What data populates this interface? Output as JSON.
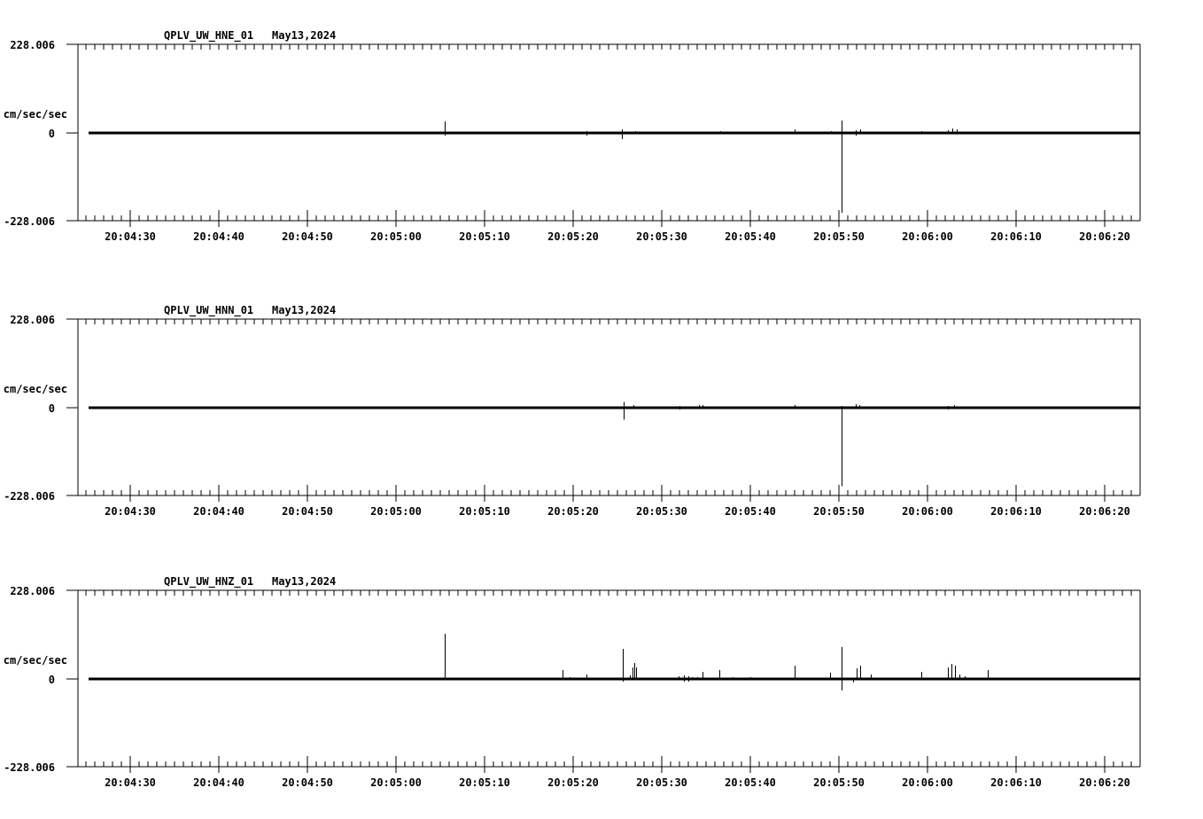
{
  "page": {
    "background": "#ffffff",
    "foreground": "#000000"
  },
  "chart_data": {
    "type": "line",
    "subtype": "seismic-acceleration-waveforms",
    "date": "May13,2024",
    "units": "cm/sec/sec",
    "ylim": [
      -228.006,
      228.006
    ],
    "yticks": [
      "228.006",
      "0",
      "-228.006"
    ],
    "x_tick_labels": [
      "20:04:30",
      "20:04:40",
      "20:04:50",
      "20:05:00",
      "20:05:10",
      "20:05:20",
      "20:05:30",
      "20:05:40",
      "20:05:50",
      "20:06:00",
      "20:06:10",
      "20:06:20"
    ],
    "x_major_interval_sec": 10,
    "x_minor_interval_sec": 1,
    "x_range_start": "20:04:25",
    "x_range_end": "20:06:24",
    "grid": false,
    "legend": false,
    "spike_format": "[seconds_after_20:04:30, peak_up_cm_s2, peak_down_cm_s2]",
    "panels": [
      {
        "id": "HNE",
        "title": "QPLV_UW_HNE_01",
        "date": "May13,2024",
        "baseline_value": 0,
        "spikes": [
          [
            35.5,
            30,
            7
          ],
          [
            40.3,
            2,
            2
          ],
          [
            49.0,
            2,
            2
          ],
          [
            51.5,
            5,
            7
          ],
          [
            55.5,
            9,
            16
          ],
          [
            57.0,
            5,
            2
          ],
          [
            63.1,
            2,
            2
          ],
          [
            66.6,
            5,
            0
          ],
          [
            75.0,
            9,
            2
          ],
          [
            79.1,
            5,
            0
          ],
          [
            80.3,
            32,
            205
          ],
          [
            81.9,
            7,
            7
          ],
          [
            82.4,
            9,
            0
          ],
          [
            89.3,
            5,
            2
          ],
          [
            92.3,
            7,
            0
          ],
          [
            92.8,
            11,
            0
          ],
          [
            93.3,
            9,
            0
          ]
        ]
      },
      {
        "id": "HNN",
        "title": "QPLV_UW_HNN_01",
        "date": "May13,2024",
        "baseline_value": 0,
        "spikes": [
          [
            35.5,
            2,
            2
          ],
          [
            51.0,
            2,
            2
          ],
          [
            55.7,
            15,
            31
          ],
          [
            56.8,
            7,
            0
          ],
          [
            62.0,
            5,
            5
          ],
          [
            62.8,
            2,
            2
          ],
          [
            64.2,
            7,
            0
          ],
          [
            64.6,
            7,
            0
          ],
          [
            66.7,
            2,
            2
          ],
          [
            75.0,
            7,
            0
          ],
          [
            78.8,
            2,
            2
          ],
          [
            80.3,
            5,
            202
          ],
          [
            81.9,
            9,
            0
          ],
          [
            82.3,
            7,
            0
          ],
          [
            92.3,
            5,
            5
          ],
          [
            93.0,
            7,
            0
          ]
        ]
      },
      {
        "id": "HNZ",
        "title": "QPLV_UW_HNZ_01",
        "date": "May13,2024",
        "baseline_value": 0,
        "spikes": [
          [
            35.5,
            116,
            0
          ],
          [
            48.8,
            23,
            0
          ],
          [
            49.6,
            5,
            0
          ],
          [
            51.5,
            11,
            2
          ],
          [
            55.6,
            78,
            7
          ],
          [
            56.4,
            9,
            0
          ],
          [
            56.7,
            30,
            0
          ],
          [
            56.9,
            41,
            0
          ],
          [
            57.1,
            30,
            0
          ],
          [
            61.9,
            7,
            2
          ],
          [
            62.5,
            9,
            7
          ],
          [
            63.0,
            7,
            7
          ],
          [
            63.4,
            5,
            2
          ],
          [
            64.0,
            5,
            0
          ],
          [
            64.6,
            18,
            0
          ],
          [
            66.5,
            23,
            0
          ],
          [
            68.0,
            5,
            0
          ],
          [
            70.0,
            5,
            2
          ],
          [
            75.0,
            34,
            0
          ],
          [
            79.0,
            16,
            0
          ],
          [
            80.3,
            82,
            30
          ],
          [
            81.6,
            2,
            9
          ],
          [
            82.0,
            27,
            0
          ],
          [
            82.4,
            34,
            0
          ],
          [
            83.6,
            11,
            2
          ],
          [
            89.3,
            18,
            0
          ],
          [
            92.3,
            30,
            0
          ],
          [
            92.7,
            39,
            0
          ],
          [
            93.1,
            34,
            0
          ],
          [
            93.6,
            11,
            0
          ],
          [
            94.2,
            7,
            0
          ],
          [
            96.8,
            23,
            0
          ]
        ]
      }
    ]
  }
}
